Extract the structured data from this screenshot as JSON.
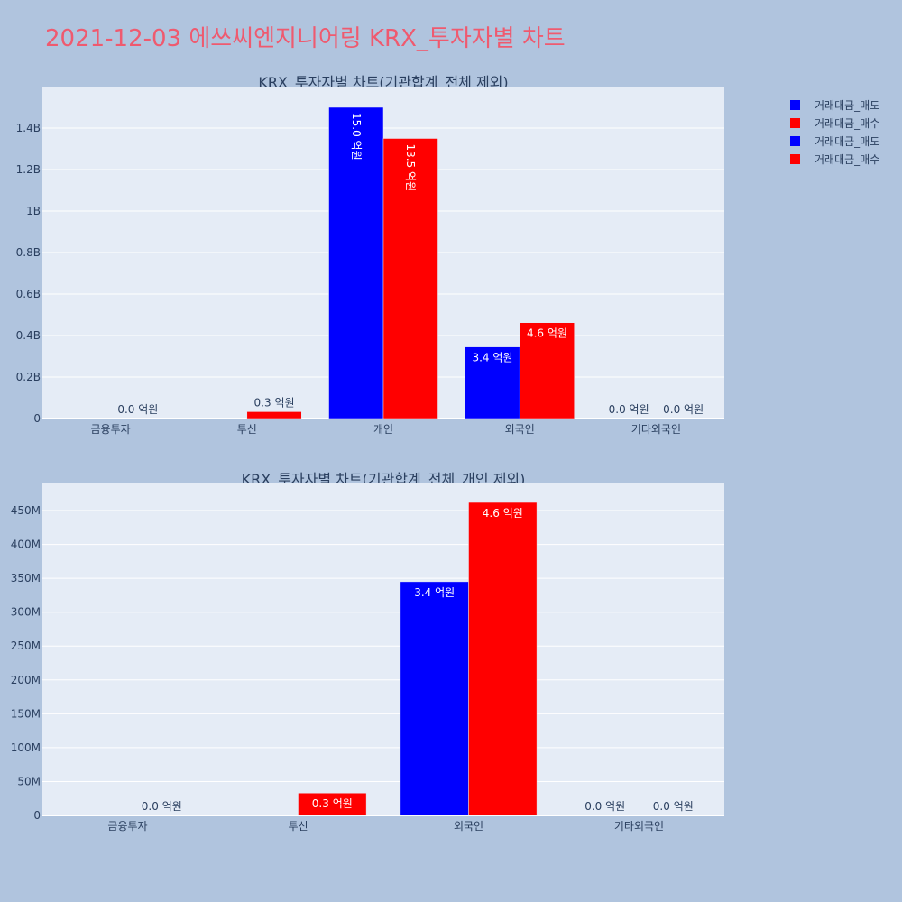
{
  "page_title": "2021-12-03 에쓰씨엔지니어링 KRX_투자자별 차트",
  "legend": [
    {
      "label": "거래대금_매도",
      "color": "#0000ff"
    },
    {
      "label": "거래대금_매수",
      "color": "#ff0000"
    },
    {
      "label": "거래대금_매도",
      "color": "#0000ff"
    },
    {
      "label": "거래대금_매수",
      "color": "#ff0000"
    }
  ],
  "chart_data": [
    {
      "type": "bar",
      "title": "KRX_투자자별 차트(기관합계_전체 제외)",
      "categories": [
        "금융투자",
        "투신",
        "개인",
        "외국인",
        "기타외국인"
      ],
      "ylim": [
        0,
        1600000000
      ],
      "yticks": [
        {
          "value": 0,
          "label": "0"
        },
        {
          "value": 200000000,
          "label": "0.2B"
        },
        {
          "value": 400000000,
          "label": "0.4B"
        },
        {
          "value": 600000000,
          "label": "0.6B"
        },
        {
          "value": 800000000,
          "label": "0.8B"
        },
        {
          "value": 1000000000,
          "label": "1B"
        },
        {
          "value": 1200000000,
          "label": "1.2B"
        },
        {
          "value": 1400000000,
          "label": "1.4B"
        }
      ],
      "series": [
        {
          "name": "거래대금_매도",
          "color": "#0000ff",
          "values": [
            0,
            0,
            1500000000,
            345000000,
            0
          ],
          "labels": [
            "",
            "",
            "15.0 억원",
            "3.4 억원",
            "0.0 억원"
          ]
        },
        {
          "name": "거래대금_매수",
          "color": "#ff0000",
          "values": [
            0,
            33000000,
            1350000000,
            462000000,
            0
          ],
          "labels": [
            "0.0 억원",
            "0.3 억원",
            "13.5 억원",
            "4.6 억원",
            "0.0 억원"
          ]
        }
      ]
    },
    {
      "type": "bar",
      "title": "KRX_투자자별 차트(기관합계_전체_개인 제외)",
      "categories": [
        "금융투자",
        "투신",
        "외국인",
        "기타외국인"
      ],
      "ylim": [
        0,
        490000000
      ],
      "yticks": [
        {
          "value": 0,
          "label": "0"
        },
        {
          "value": 50000000,
          "label": "50M"
        },
        {
          "value": 100000000,
          "label": "100M"
        },
        {
          "value": 150000000,
          "label": "150M"
        },
        {
          "value": 200000000,
          "label": "200M"
        },
        {
          "value": 250000000,
          "label": "250M"
        },
        {
          "value": 300000000,
          "label": "300M"
        },
        {
          "value": 350000000,
          "label": "350M"
        },
        {
          "value": 400000000,
          "label": "400M"
        },
        {
          "value": 450000000,
          "label": "450M"
        }
      ],
      "series": [
        {
          "name": "거래대금_매도",
          "color": "#0000ff",
          "values": [
            0,
            0,
            345000000,
            0
          ],
          "labels": [
            "",
            "",
            "3.4 억원",
            "0.0 억원"
          ]
        },
        {
          "name": "거래대금_매수",
          "color": "#ff0000",
          "values": [
            0,
            33000000,
            462000000,
            0
          ],
          "labels": [
            "0.0 억원",
            "0.3 억원",
            "4.6 억원",
            "0.0 억원"
          ]
        }
      ]
    }
  ]
}
